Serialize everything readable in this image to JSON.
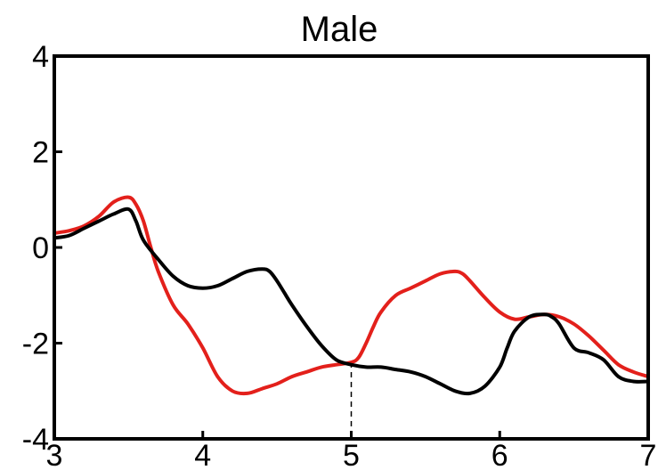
{
  "chart_data": {
    "type": "line",
    "title": "Male",
    "xlabel": "",
    "ylabel": "",
    "xlim": [
      3,
      7
    ],
    "ylim": [
      -4,
      4
    ],
    "xticks": [
      3,
      4,
      5,
      6,
      7
    ],
    "yticks": [
      4,
      2,
      0,
      -2,
      -4
    ],
    "grid": false,
    "series": [
      {
        "color": "#e3201b",
        "x": [
          3.0,
          3.1,
          3.2,
          3.3,
          3.4,
          3.5,
          3.55,
          3.6,
          3.65,
          3.7,
          3.8,
          3.9,
          4.0,
          4.1,
          4.2,
          4.3,
          4.4,
          4.5,
          4.6,
          4.7,
          4.8,
          4.9,
          5.0,
          5.05,
          5.1,
          5.15,
          5.2,
          5.3,
          5.4,
          5.5,
          5.6,
          5.7,
          5.75,
          5.8,
          5.9,
          6.0,
          6.1,
          6.2,
          6.3,
          6.4,
          6.5,
          6.6,
          6.7,
          6.8,
          6.9,
          7.0
        ],
        "y": [
          0.3,
          0.35,
          0.45,
          0.65,
          0.95,
          1.05,
          0.9,
          0.55,
          0.0,
          -0.5,
          -1.2,
          -1.6,
          -2.1,
          -2.7,
          -3.0,
          -3.05,
          -2.95,
          -2.85,
          -2.7,
          -2.6,
          -2.5,
          -2.45,
          -2.4,
          -2.3,
          -2.0,
          -1.65,
          -1.35,
          -1.0,
          -0.85,
          -0.7,
          -0.55,
          -0.5,
          -0.55,
          -0.7,
          -1.05,
          -1.35,
          -1.5,
          -1.45,
          -1.4,
          -1.45,
          -1.6,
          -1.85,
          -2.15,
          -2.45,
          -2.6,
          -2.7
        ]
      },
      {
        "color": "#000000",
        "x": [
          3.0,
          3.1,
          3.2,
          3.3,
          3.4,
          3.5,
          3.55,
          3.6,
          3.7,
          3.8,
          3.9,
          4.0,
          4.1,
          4.2,
          4.3,
          4.4,
          4.45,
          4.5,
          4.55,
          4.6,
          4.7,
          4.8,
          4.9,
          5.0,
          5.1,
          5.2,
          5.3,
          5.4,
          5.5,
          5.6,
          5.7,
          5.8,
          5.9,
          6.0,
          6.05,
          6.1,
          6.2,
          6.3,
          6.35,
          6.4,
          6.5,
          6.6,
          6.7,
          6.8,
          6.9,
          7.0
        ],
        "y": [
          0.2,
          0.25,
          0.4,
          0.55,
          0.7,
          0.8,
          0.55,
          0.15,
          -0.25,
          -0.6,
          -0.8,
          -0.85,
          -0.8,
          -0.65,
          -0.5,
          -0.45,
          -0.5,
          -0.7,
          -0.95,
          -1.2,
          -1.65,
          -2.05,
          -2.35,
          -2.45,
          -2.5,
          -2.5,
          -2.55,
          -2.6,
          -2.7,
          -2.85,
          -3.0,
          -3.05,
          -2.9,
          -2.5,
          -2.1,
          -1.75,
          -1.45,
          -1.4,
          -1.45,
          -1.6,
          -2.1,
          -2.2,
          -2.35,
          -2.7,
          -2.8,
          -2.8
        ]
      }
    ],
    "annotations": [
      {
        "type": "dashed-vline",
        "x": 5.0,
        "y_from": -4,
        "y_to": -2.4
      }
    ]
  }
}
